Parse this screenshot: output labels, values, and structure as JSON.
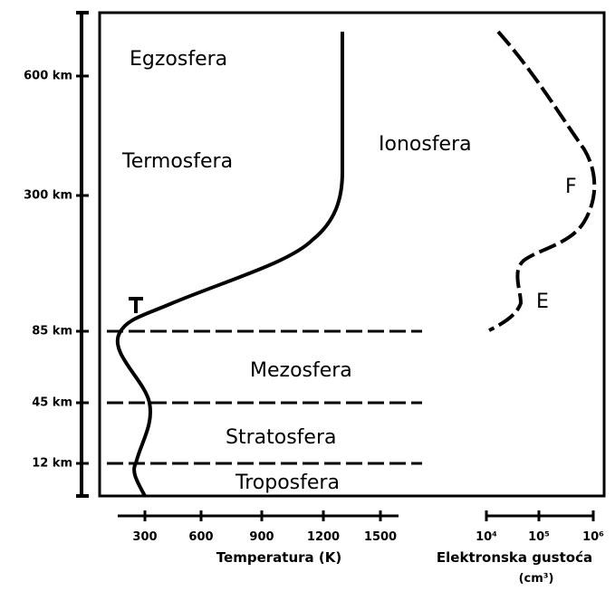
{
  "altitude_labels": [
    "600 km",
    "300 km",
    "85 km",
    "45 km",
    "12 km"
  ],
  "layers": {
    "exosphere": "Egzosfera",
    "thermosphere": "Termosfera",
    "ionosphere": "Ionosfera",
    "mesosphere": "Mezosfera",
    "stratosphere": "Stratosfera",
    "troposphere": "Troposfera"
  },
  "ionosphere_regions": [
    "F",
    "E"
  ],
  "temperature_axis": {
    "ticks": [
      "300",
      "600",
      "900",
      "1200",
      "1500"
    ],
    "title": "Temperatura (K)"
  },
  "density_axis": {
    "ticks": [
      "10⁴",
      "10⁵",
      "10⁶"
    ],
    "title": "Elektronska gustoća",
    "unit": "(cm³)"
  }
}
